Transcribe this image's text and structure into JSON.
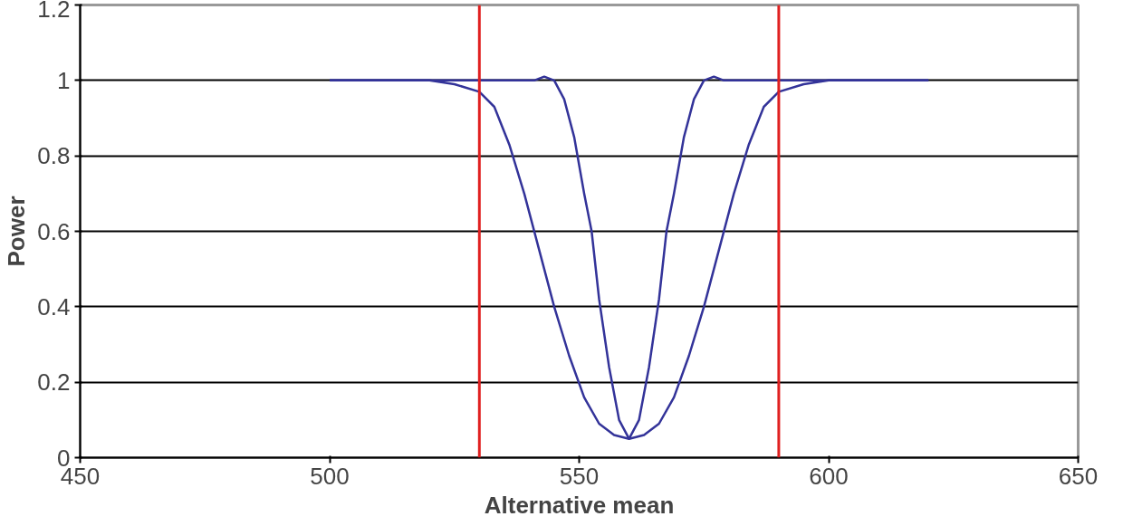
{
  "chart_data": {
    "type": "line",
    "xlabel": "Alternative mean",
    "ylabel": "Power",
    "xlim": [
      450,
      650
    ],
    "xticks": [
      450,
      500,
      550,
      600,
      650
    ],
    "ylim": [
      0,
      1.2
    ],
    "yticks": [
      0,
      0.2,
      0.4,
      0.6,
      0.8,
      1,
      1.2
    ],
    "grid": "y",
    "marker": "none",
    "line_style": "solid",
    "series": [
      {
        "color": "#333399",
        "x": [
          500,
          515,
          520,
          525,
          530,
          533,
          536,
          539,
          542,
          545,
          548,
          551,
          554,
          557,
          560,
          563,
          566,
          569,
          572,
          575,
          578,
          581,
          584,
          587,
          590,
          595,
          600,
          605,
          620
        ],
        "values": [
          1,
          1,
          1,
          0.99,
          0.97,
          0.93,
          0.83,
          0.7,
          0.55,
          0.4,
          0.27,
          0.16,
          0.09,
          0.06,
          0.05,
          0.06,
          0.09,
          0.16,
          0.27,
          0.4,
          0.55,
          0.7,
          0.83,
          0.93,
          0.97,
          0.99,
          1,
          1,
          1
        ]
      },
      {
        "color": "#333399",
        "x": [
          500,
          538,
          541,
          543,
          545,
          547,
          549,
          551,
          552.5,
          554,
          556,
          558,
          560,
          562,
          564,
          566,
          567.5,
          569,
          571,
          573,
          575,
          577,
          579,
          582,
          620
        ],
        "values": [
          1,
          1,
          1,
          1.01,
          1,
          0.95,
          0.85,
          0.7,
          0.6,
          0.42,
          0.24,
          0.1,
          0.05,
          0.1,
          0.24,
          0.42,
          0.6,
          0.7,
          0.85,
          0.95,
          1,
          1.01,
          1,
          1,
          1
        ]
      }
    ],
    "ref_lines": [
      {
        "axis": "x",
        "value": 530,
        "color": "#e02020"
      },
      {
        "axis": "x",
        "value": 590,
        "color": "#e02020"
      }
    ]
  }
}
